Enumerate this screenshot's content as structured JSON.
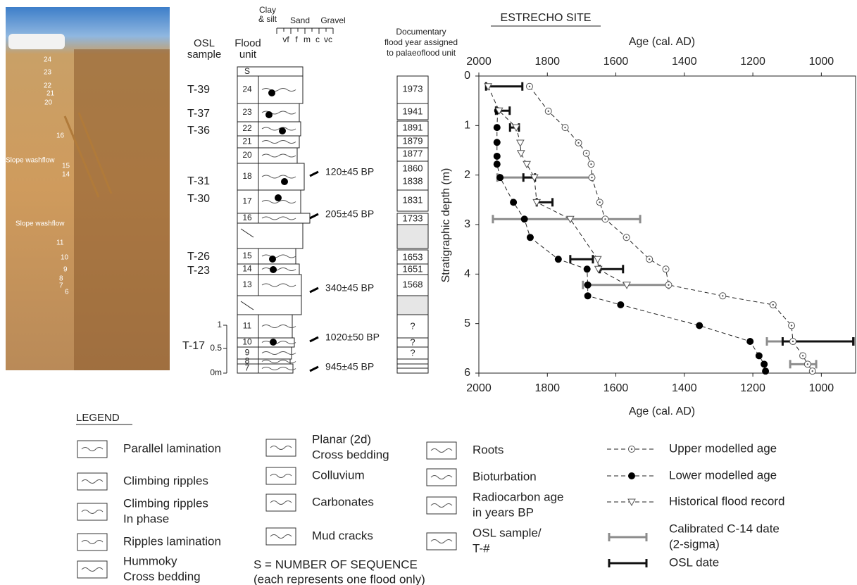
{
  "chart_data": {
    "type": "line",
    "title": "ESTRECHO SITE",
    "xlabel_top": "Age (cal. AD)",
    "xlabel": "Age (cal. AD)",
    "ylabel": "Stratigraphic depth (m)",
    "xlim": [
      2000,
      900
    ],
    "xticks": [
      2000,
      1800,
      1600,
      1400,
      1200,
      1000
    ],
    "ylim": [
      0,
      6
    ],
    "yticks": [
      0,
      1,
      2,
      3,
      4,
      5,
      6
    ],
    "y_inverted": true,
    "series": [
      {
        "name": "Upper modelled age",
        "marker": "circle-dot",
        "color": "#555555",
        "x": [
          1852,
          1797,
          1748,
          1709,
          1686,
          1672,
          1670,
          1647,
          1631,
          1569,
          1502,
          1454,
          1446,
          1288,
          1141,
          1087,
          1083,
          1054,
          1040,
          1026
        ],
        "y": [
          0.21,
          0.71,
          1.04,
          1.35,
          1.56,
          1.78,
          2.05,
          2.55,
          2.89,
          3.26,
          3.7,
          3.9,
          4.22,
          4.44,
          4.62,
          5.04,
          5.36,
          5.65,
          5.82,
          5.96
        ]
      },
      {
        "name": "Lower modelled age",
        "marker": "filled",
        "color": "#000000",
        "x": [
          1945,
          1947,
          1947,
          1947,
          1947,
          1938,
          1899,
          1867,
          1850,
          1768,
          1684,
          1682,
          1682,
          1586,
          1356,
          1208,
          1182,
          1167,
          1163
        ],
        "y": [
          0.7,
          1.04,
          1.34,
          1.62,
          1.78,
          2.05,
          2.55,
          2.89,
          3.26,
          3.7,
          3.9,
          4.22,
          4.44,
          4.62,
          5.04,
          5.36,
          5.65,
          5.82,
          5.96
        ]
      },
      {
        "name": "Historical flood record",
        "marker": "triangle",
        "color": "#555555",
        "x": [
          1973,
          1941,
          1891,
          1879,
          1877,
          1860,
          1838,
          1831,
          1733,
          1653,
          1651,
          1568
        ],
        "y": [
          0.21,
          0.7,
          1.04,
          1.35,
          1.56,
          1.78,
          2.05,
          2.55,
          2.89,
          3.7,
          3.9,
          4.22
        ]
      }
    ],
    "errorbars": [
      {
        "name": "Calibrated C-14 date",
        "name_note": "(2-sigma)",
        "color": "#8c8c8c",
        "x": [
          1807,
          1744,
          1571,
          1031,
          1053
        ],
        "xerr": [
          139,
          215,
          125,
          128,
          38
        ],
        "y": [
          2.05,
          2.89,
          4.22,
          5.36,
          5.82
        ]
      },
      {
        "name": "OSL date",
        "color": "#111111",
        "x": [
          1926,
          1930,
          1896,
          1853,
          1808,
          1700,
          1613,
          1010
        ],
        "xerr": [
          53,
          20,
          13,
          17,
          23,
          33,
          34,
          103
        ],
        "y": [
          0.21,
          0.7,
          1.04,
          2.05,
          2.55,
          3.7,
          3.9,
          5.36
        ]
      }
    ]
  },
  "photo": {
    "labels": [
      "24",
      "23",
      "22",
      "21",
      "20",
      "16",
      "Slope washflow",
      "15",
      "14",
      "Slope washflow",
      "11",
      "10",
      "9",
      "8",
      "7",
      "6"
    ]
  },
  "column": {
    "osl_header": [
      "OSL",
      "sample"
    ],
    "unit_header": [
      "Flood",
      "unit"
    ],
    "grain_header": {
      "clay": [
        "Clay",
        "& silt"
      ],
      "sand": "Sand",
      "gravel": "Gravel",
      "classes": [
        "vf",
        "f",
        "m",
        "c",
        "vc"
      ]
    },
    "doc_header": [
      "Documentary",
      "flood year assigned",
      "to palaeoflood unit"
    ],
    "s_label": "S",
    "units": [
      "24",
      "23",
      "22",
      "21",
      "20",
      "18",
      "17",
      "16",
      "15",
      "14",
      "13",
      "11",
      "10",
      "9",
      "8",
      "7"
    ],
    "osl_samples": [
      "T-39",
      "T-37",
      "T-36",
      "T-31",
      "T-30",
      "T-26",
      "T-23",
      "T-17"
    ],
    "c14_labels": [
      "120±45 BP",
      "205±45 BP",
      "340±45 BP",
      "1020±50 BP",
      "945±45 BP"
    ],
    "flood_years": [
      "1973",
      "1941",
      "1891",
      "1879",
      "1877",
      "1860",
      "1838",
      "1831",
      "1733",
      "1653",
      "1651",
      "1568",
      "?",
      "?",
      "?"
    ],
    "scale": [
      "1",
      "0.5",
      "0m"
    ]
  },
  "legend": {
    "title": "LEGEND",
    "items": [
      [
        "Parallel lamination"
      ],
      [
        "Climbing ripples"
      ],
      [
        "Climbing ripples",
        "In phase"
      ],
      [
        "Ripples lamination"
      ],
      [
        "Hummoky",
        "Cross bedding"
      ],
      [
        "Planar (2d)",
        "Cross bedding"
      ],
      [
        "Colluvium"
      ],
      [
        "Carbonates"
      ],
      [
        "Mud cracks"
      ],
      [
        "Roots"
      ],
      [
        "Bioturbation"
      ],
      [
        "Radiocarbon age",
        "in years BP"
      ],
      [
        "OSL sample/",
        "T-#"
      ]
    ],
    "note": [
      "S = NUMBER OF SEQUENCE",
      "(each represents one flood only)"
    ]
  }
}
